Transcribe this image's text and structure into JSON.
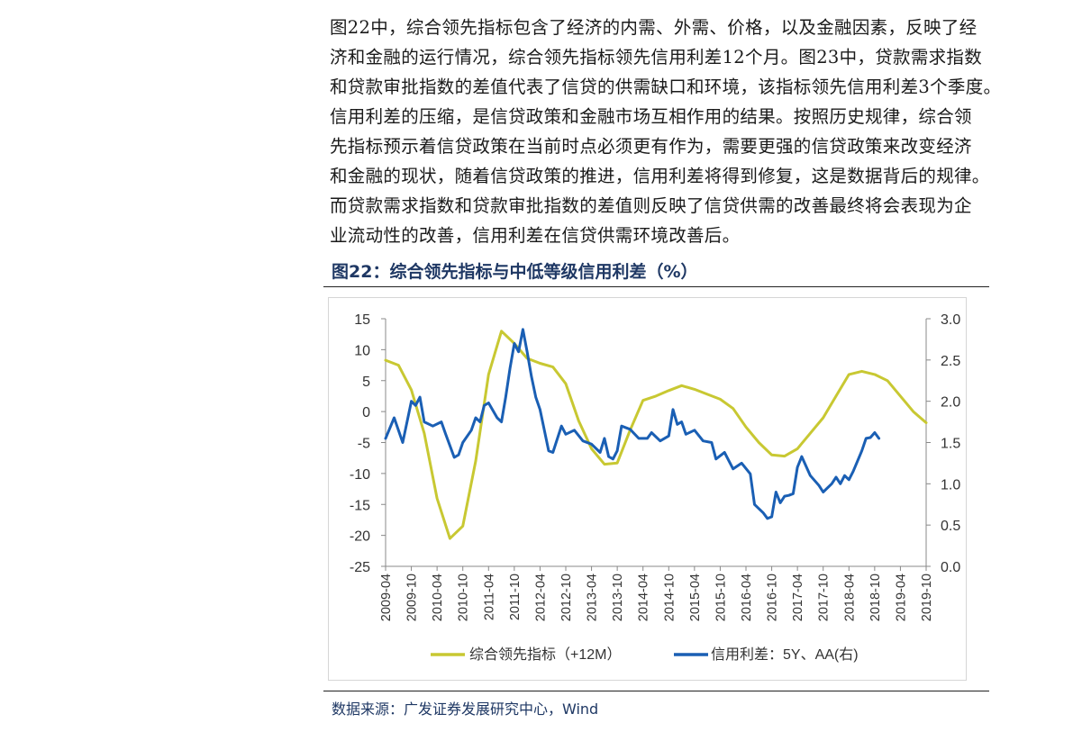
{
  "intro_paragraph": [
    "图22中，综合领先指标包含了经济的内需、外需、价格，以及金融因素，反映了经",
    "济和金融的运行情况，综合领先指标领先信用利差12个月。图23中，贷款需求指数",
    "和贷款审批指数的差值代表了信贷的供需缺口和环境，该指标领先信用利差3个季度。",
    "信用利差的压缩，是信贷政策和金融市场互相作用的结果。按照历史规律，综合领",
    "先指标预示着信贷政策在当前时点必须更有作为，需要更强的信贷政策来改变经济",
    "和金融的现状，随着信贷政策的推进，信用利差将得到修复，这是数据背后的规律。",
    "而贷款需求指数和贷款审批指数的差值则反映了信贷供需的改善最终将会表现为企",
    "业流动性的改善，信用利差在信贷供需环境改善后。"
  ],
  "figure_title": "图22：综合领先指标与中低等级信用利差（%）",
  "source_text": "数据来源：广发证券发展研究中心，Wind",
  "chart_data": {
    "type": "line",
    "title": "",
    "x_tick_labels": [
      "2009-04",
      "2009-10",
      "2010-04",
      "2010-10",
      "2011-04",
      "2011-10",
      "2012-04",
      "2012-10",
      "2013-04",
      "2013-10",
      "2014-04",
      "2014-10",
      "2015-04",
      "2015-10",
      "2016-04",
      "2016-10",
      "2017-04",
      "2017-10",
      "2018-04",
      "2018-10",
      "2019-04",
      "2019-10"
    ],
    "x_range": [
      "2009-04",
      "2019-10"
    ],
    "y_left": {
      "ticks": [
        "15",
        "10",
        "5",
        "0",
        "-5",
        "-10",
        "-15",
        "-20",
        "-25"
      ],
      "min": -25,
      "max": 15
    },
    "y_right": {
      "ticks": [
        "3.0",
        "2.5",
        "2.0",
        "1.5",
        "1.0",
        "0.5",
        "0.0"
      ],
      "min": 0,
      "max": 3.0
    },
    "grid": false,
    "legend_position": "bottom",
    "series": [
      {
        "name": "综合领先指标（+12M）",
        "axis": "left",
        "color": "#c8c832",
        "points": [
          [
            "2009-04",
            8.3
          ],
          [
            "2009-07",
            7.5
          ],
          [
            "2009-10",
            3.5
          ],
          [
            "2010-01",
            -3.5
          ],
          [
            "2010-04",
            -14
          ],
          [
            "2010-07",
            -20.5
          ],
          [
            "2010-10",
            -18.5
          ],
          [
            "2011-01",
            -8
          ],
          [
            "2011-04",
            6
          ],
          [
            "2011-07",
            13
          ],
          [
            "2011-10",
            11
          ],
          [
            "2012-01",
            8.6
          ],
          [
            "2012-04",
            7.8
          ],
          [
            "2012-07",
            7.2
          ],
          [
            "2012-10",
            4.5
          ],
          [
            "2013-01",
            -1.5
          ],
          [
            "2013-04",
            -6
          ],
          [
            "2013-07",
            -8.5
          ],
          [
            "2013-10",
            -8.3
          ],
          [
            "2014-01",
            -3
          ],
          [
            "2014-04",
            1.8
          ],
          [
            "2014-07",
            2.5
          ],
          [
            "2014-10",
            3.4
          ],
          [
            "2015-01",
            4.2
          ],
          [
            "2015-04",
            3.6
          ],
          [
            "2015-07",
            2.8
          ],
          [
            "2015-10",
            2
          ],
          [
            "2016-01",
            0.5
          ],
          [
            "2016-04",
            -2.5
          ],
          [
            "2016-07",
            -5
          ],
          [
            "2016-10",
            -7
          ],
          [
            "2017-01",
            -7.2
          ],
          [
            "2017-04",
            -6
          ],
          [
            "2017-07",
            -3.5
          ],
          [
            "2017-10",
            -1
          ],
          [
            "2018-01",
            2.5
          ],
          [
            "2018-04",
            6
          ],
          [
            "2018-07",
            6.5
          ],
          [
            "2018-10",
            6
          ],
          [
            "2019-01",
            5
          ],
          [
            "2019-04",
            2.5
          ],
          [
            "2019-07",
            0
          ],
          [
            "2019-10",
            -1.8
          ]
        ]
      },
      {
        "name": "信用利差：5Y、AA(右)",
        "axis": "right",
        "color": "#1a5fb4",
        "points": [
          [
            "2009-04",
            1.55
          ],
          [
            "2009-06",
            1.8
          ],
          [
            "2009-08",
            1.5
          ],
          [
            "2009-10",
            2.0
          ],
          [
            "2009-11",
            1.95
          ],
          [
            "2009-12",
            2.05
          ],
          [
            "2010-01",
            1.75
          ],
          [
            "2010-03",
            1.7
          ],
          [
            "2010-05",
            1.75
          ],
          [
            "2010-06",
            1.6
          ],
          [
            "2010-08",
            1.32
          ],
          [
            "2010-09",
            1.35
          ],
          [
            "2010-10",
            1.5
          ],
          [
            "2010-12",
            1.65
          ],
          [
            "2011-01",
            1.8
          ],
          [
            "2011-02",
            1.75
          ],
          [
            "2011-03",
            1.95
          ],
          [
            "2011-04",
            1.98
          ],
          [
            "2011-06",
            1.8
          ],
          [
            "2011-07",
            1.75
          ],
          [
            "2011-08",
            2.05
          ],
          [
            "2011-09",
            2.4
          ],
          [
            "2011-10",
            2.7
          ],
          [
            "2011-11",
            2.6
          ],
          [
            "2011-12",
            2.87
          ],
          [
            "2012-01",
            2.6
          ],
          [
            "2012-02",
            2.3
          ],
          [
            "2012-03",
            2.05
          ],
          [
            "2012-04",
            1.9
          ],
          [
            "2012-06",
            1.4
          ],
          [
            "2012-07",
            1.38
          ],
          [
            "2012-09",
            1.7
          ],
          [
            "2012-10",
            1.6
          ],
          [
            "2012-12",
            1.65
          ],
          [
            "2013-02",
            1.52
          ],
          [
            "2013-04",
            1.48
          ],
          [
            "2013-06",
            1.38
          ],
          [
            "2013-07",
            1.55
          ],
          [
            "2013-08",
            1.33
          ],
          [
            "2013-09",
            1.3
          ],
          [
            "2013-10",
            1.4
          ],
          [
            "2013-11",
            1.7
          ],
          [
            "2014-01",
            1.66
          ],
          [
            "2014-03",
            1.55
          ],
          [
            "2014-05",
            1.55
          ],
          [
            "2014-06",
            1.62
          ],
          [
            "2014-08",
            1.52
          ],
          [
            "2014-10",
            1.58
          ],
          [
            "2014-11",
            1.9
          ],
          [
            "2014-12",
            1.72
          ],
          [
            "2015-01",
            1.75
          ],
          [
            "2015-02",
            1.6
          ],
          [
            "2015-04",
            1.65
          ],
          [
            "2015-06",
            1.52
          ],
          [
            "2015-08",
            1.5
          ],
          [
            "2015-09",
            1.3
          ],
          [
            "2015-11",
            1.38
          ],
          [
            "2016-01",
            1.18
          ],
          [
            "2016-03",
            1.25
          ],
          [
            "2016-05",
            1.12
          ],
          [
            "2016-06",
            0.75
          ],
          [
            "2016-08",
            0.65
          ],
          [
            "2016-09",
            0.58
          ],
          [
            "2016-10",
            0.6
          ],
          [
            "2016-11",
            0.9
          ],
          [
            "2016-12",
            0.77
          ],
          [
            "2017-01",
            0.85
          ],
          [
            "2017-02",
            0.86
          ],
          [
            "2017-03",
            0.88
          ],
          [
            "2017-04",
            1.2
          ],
          [
            "2017-05",
            1.33
          ],
          [
            "2017-07",
            1.1
          ],
          [
            "2017-09",
            0.98
          ],
          [
            "2017-10",
            0.9
          ],
          [
            "2017-12",
            1.0
          ],
          [
            "2018-01",
            1.08
          ],
          [
            "2018-02",
            1.0
          ],
          [
            "2018-03",
            1.1
          ],
          [
            "2018-04",
            1.05
          ],
          [
            "2018-05",
            1.15
          ],
          [
            "2018-07",
            1.4
          ],
          [
            "2018-08",
            1.55
          ],
          [
            "2018-09",
            1.56
          ],
          [
            "2018-10",
            1.62
          ],
          [
            "2018-11",
            1.55
          ]
        ]
      }
    ]
  }
}
